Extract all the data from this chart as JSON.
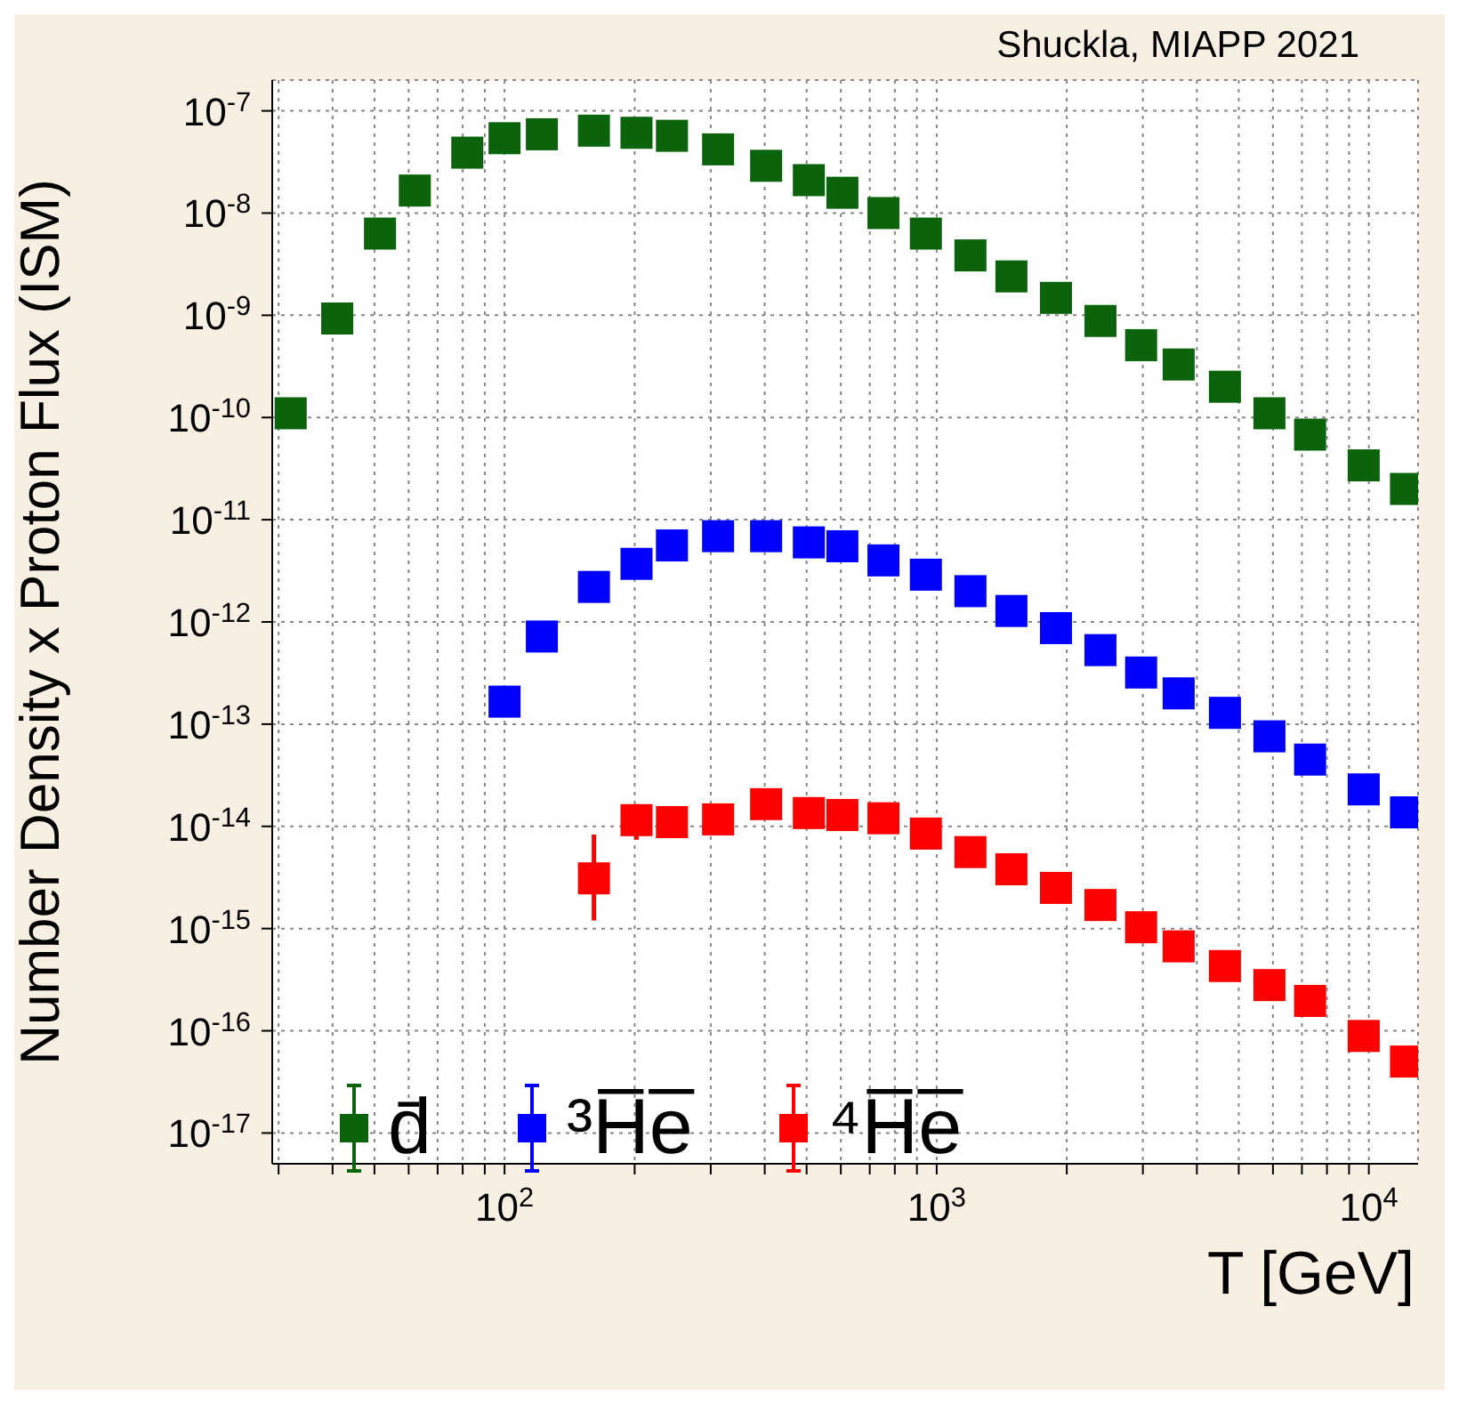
{
  "chart_data": {
    "type": "scatter",
    "xlabel": "T [GeV]",
    "ylabel": "Number Density x Proton Flux (ISM)",
    "annotations": [
      "Shuckla, MIAPP 2021"
    ],
    "log": "xy",
    "grid": true,
    "legend": "bottom left",
    "marker": "square",
    "xlim": [
      29,
      13000
    ],
    "ylim": [
      5e-18,
      2e-07
    ],
    "xticks": [
      {
        "value": 30,
        "label": null
      },
      {
        "value": 40,
        "label": null
      },
      {
        "value": 50,
        "label": null
      },
      {
        "value": 60,
        "label": null
      },
      {
        "value": 70,
        "label": null
      },
      {
        "value": 80,
        "label": null
      },
      {
        "value": 90,
        "label": null
      },
      {
        "value": 100,
        "label": "10$^{2}$"
      },
      {
        "value": 200,
        "label": null
      },
      {
        "value": 300,
        "label": null
      },
      {
        "value": 400,
        "label": null
      },
      {
        "value": 500,
        "label": null
      },
      {
        "value": 600,
        "label": null
      },
      {
        "value": 700,
        "label": null
      },
      {
        "value": 800,
        "label": null
      },
      {
        "value": 900,
        "label": null
      },
      {
        "value": 1000,
        "label": "10$^{3}$"
      },
      {
        "value": 2000,
        "label": null
      },
      {
        "value": 3000,
        "label": null
      },
      {
        "value": 4000,
        "label": null
      },
      {
        "value": 5000,
        "label": null
      },
      {
        "value": 6000,
        "label": null
      },
      {
        "value": 7000,
        "label": null
      },
      {
        "value": 8000,
        "label": null
      },
      {
        "value": 9000,
        "label": null
      },
      {
        "value": 10000,
        "label": "10$^{4}$"
      }
    ],
    "yticks": [
      {
        "value": 1e-17,
        "label": "10$^{-17}$"
      },
      {
        "value": 1e-16,
        "label": "10$^{-16}$"
      },
      {
        "value": 1e-15,
        "label": "10$^{-15}$"
      },
      {
        "value": 1e-14,
        "label": "10$^{-14}$"
      },
      {
        "value": 1e-13,
        "label": "10$^{-13}$"
      },
      {
        "value": 1e-12,
        "label": "10$^{-12}$"
      },
      {
        "value": 1e-11,
        "label": "10$^{-11}$"
      },
      {
        "value": 1e-10,
        "label": "10$^{-10}$"
      },
      {
        "value": 1e-09,
        "label": "10$^{-9}$"
      },
      {
        "value": 1e-08,
        "label": "10$^{-8}$"
      },
      {
        "value": 1e-07,
        "label": "10$^{-7}$"
      }
    ],
    "series": [
      {
        "name": "d̄",
        "color": "#0b640b",
        "x": [
          32,
          41,
          51.5,
          62,
          82,
          100,
          122,
          161,
          202,
          244,
          312,
          403,
          506,
          605,
          753,
          944,
          1197,
          1489,
          1888,
          2393,
          2972,
          3630,
          4645,
          5888,
          7313,
          9730,
          12190
        ],
        "values": [
          1.1e-10,
          9.3e-10,
          6.3e-09,
          1.66e-08,
          3.9e-08,
          5.4e-08,
          5.9e-08,
          6.4e-08,
          6.1e-08,
          5.7e-08,
          4.2e-08,
          2.9e-08,
          2.1e-08,
          1.58e-08,
          1e-08,
          6.3e-09,
          3.85e-09,
          2.4e-09,
          1.48e-09,
          8.8e-10,
          5.1e-10,
          3.3e-10,
          2e-10,
          1.1e-10,
          6.8e-11,
          3.4e-11,
          2e-11
        ]
      },
      {
        "name": "³H̅e̅",
        "color": "#0000ff",
        "x": [
          100,
          122,
          161,
          202,
          244,
          312,
          403,
          506,
          605,
          753,
          944,
          1197,
          1489,
          1888,
          2393,
          2972,
          3630,
          4645,
          5888,
          7313,
          9730,
          12190
        ],
        "values": [
          1.66e-13,
          7.2e-13,
          2.2e-12,
          3.7e-12,
          5.6e-12,
          6.9e-12,
          6.9e-12,
          6e-12,
          5.5e-12,
          4e-12,
          2.9e-12,
          2e-12,
          1.28e-12,
          8.7e-13,
          5.3e-13,
          3.2e-13,
          2e-13,
          1.29e-13,
          7.6e-14,
          4.5e-14,
          2.3e-14,
          1.37e-14
        ]
      },
      {
        "name": "⁴H̅e̅",
        "color": "#ff0000",
        "x": [
          161,
          202,
          244,
          312,
          403,
          506,
          605,
          753,
          944,
          1197,
          1489,
          1888,
          2393,
          2972,
          3630,
          4645,
          5888,
          7313,
          9730,
          12190
        ],
        "values": [
          3.1e-15,
          1.15e-14,
          1.1e-14,
          1.17e-14,
          1.65e-14,
          1.35e-14,
          1.29e-14,
          1.2e-14,
          8.5e-15,
          5.6e-15,
          3.8e-15,
          2.5e-15,
          1.7e-15,
          1.03e-15,
          6.7e-16,
          4.3e-16,
          2.8e-16,
          1.96e-16,
          8.9e-17,
          5e-17
        ],
        "errors": [
          [
            1.2e-15,
            8.3e-15
          ],
          [
            7.4e-15,
            1.65e-14
          ],
          null,
          null,
          null,
          null,
          null,
          null,
          null,
          null,
          null,
          null,
          null,
          null,
          null,
          null,
          null,
          null,
          null,
          null
        ]
      }
    ]
  }
}
